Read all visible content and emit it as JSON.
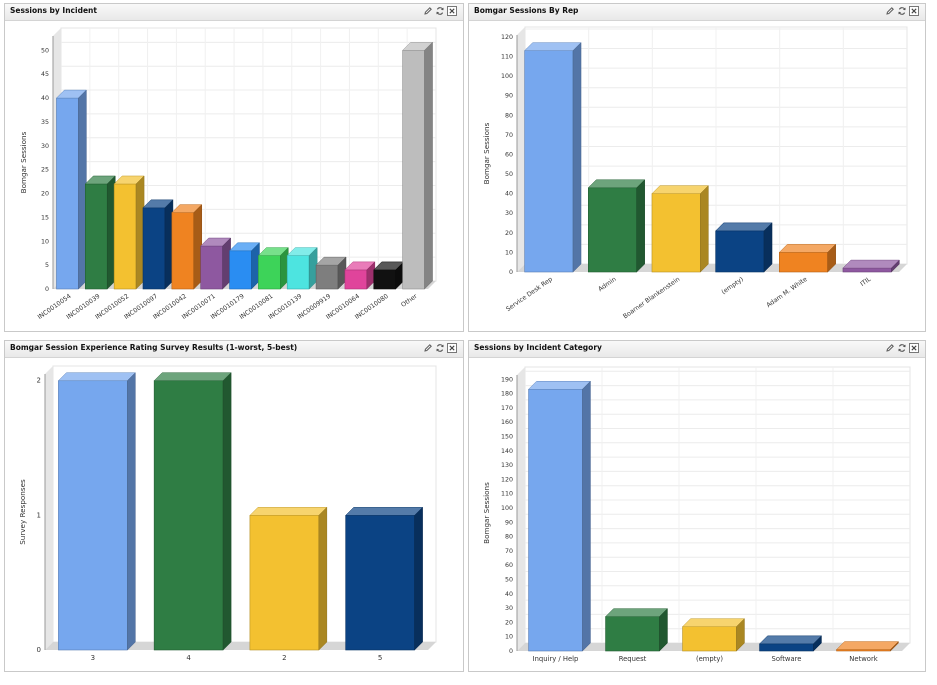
{
  "panels": [
    {
      "title": "Sessions by Incident"
    },
    {
      "title": "Bomgar Sessions By Rep"
    },
    {
      "title": "Bomgar Session Experience Rating Survey Results (1-worst, 5-best)"
    },
    {
      "title": "Sessions by Incident Category"
    }
  ],
  "icons": [
    "edit-icon",
    "refresh-icon",
    "close-icon"
  ],
  "chart_data": [
    {
      "type": "bar",
      "title": "Sessions by Incident",
      "ylabel": "Bomgar Sessions",
      "xlabel": "",
      "ylim": [
        0,
        53
      ],
      "yticks": [
        0,
        5,
        10,
        15,
        20,
        25,
        30,
        35,
        40,
        45,
        50
      ],
      "categories": [
        "INC0010054",
        "INC0010039",
        "INC0010052",
        "INC0010097",
        "INC0010042",
        "INC0010071",
        "INC0010179",
        "INC0010081",
        "INC0010139",
        "INC0009919",
        "INC0010064",
        "INC0010080",
        "Other"
      ],
      "values": [
        40,
        22,
        22,
        17,
        16,
        9,
        8,
        7,
        7,
        5,
        4,
        4,
        50
      ],
      "colors": [
        "#76a7ee",
        "#2f7d44",
        "#f3c130",
        "#0b4384",
        "#ef8321",
        "#8e58a0",
        "#2a8df2",
        "#3dd359",
        "#4de4e0",
        "#7e7e7e",
        "#e0449b",
        "#111111",
        "#bdbdbd"
      ],
      "rotate_labels": true,
      "grid": true
    },
    {
      "type": "bar",
      "title": "Bomgar Sessions By Rep",
      "ylabel": "Bomgar Sessions",
      "xlabel": "",
      "ylim": [
        0,
        121
      ],
      "yticks": [
        0,
        10,
        20,
        30,
        40,
        50,
        60,
        70,
        80,
        90,
        100,
        110,
        120
      ],
      "categories": [
        "Service Desk Rep",
        "Admin",
        "Boarner Blankenstein",
        "(empty)",
        "Adam M. White",
        "ITIL"
      ],
      "values": [
        113,
        43,
        40,
        21,
        10,
        2
      ],
      "colors": [
        "#76a7ee",
        "#2f7d44",
        "#f3c130",
        "#0b4384",
        "#ef8321",
        "#8e58a0"
      ],
      "rotate_labels": true,
      "grid": true
    },
    {
      "type": "bar",
      "title": "Bomgar Session Experience Rating Survey Results (1-worst, 5-best)",
      "ylabel": "Survey Responses",
      "xlabel": "",
      "ylim": [
        0,
        2.05
      ],
      "yticks": [
        0,
        1,
        2
      ],
      "categories": [
        "3",
        "4",
        "2",
        "5"
      ],
      "values": [
        2,
        2,
        1,
        1
      ],
      "colors": [
        "#76a7ee",
        "#2f7d44",
        "#f3c130",
        "#0b4384"
      ],
      "rotate_labels": false,
      "grid": false
    },
    {
      "type": "bar",
      "title": "Sessions by Incident Category",
      "ylabel": "Bomgar Sessions",
      "xlabel": "",
      "ylim": [
        0,
        193
      ],
      "yticks": [
        0,
        10,
        20,
        30,
        40,
        50,
        60,
        70,
        80,
        90,
        100,
        110,
        120,
        130,
        140,
        150,
        160,
        170,
        180,
        190
      ],
      "categories": [
        "Inquiry / Help",
        "Request",
        "(empty)",
        "Software",
        "Network"
      ],
      "values": [
        183,
        24,
        17,
        5,
        1
      ],
      "colors": [
        "#76a7ee",
        "#2f7d44",
        "#f3c130",
        "#0b4384",
        "#ef8321"
      ],
      "rotate_labels": false,
      "grid": true
    }
  ]
}
